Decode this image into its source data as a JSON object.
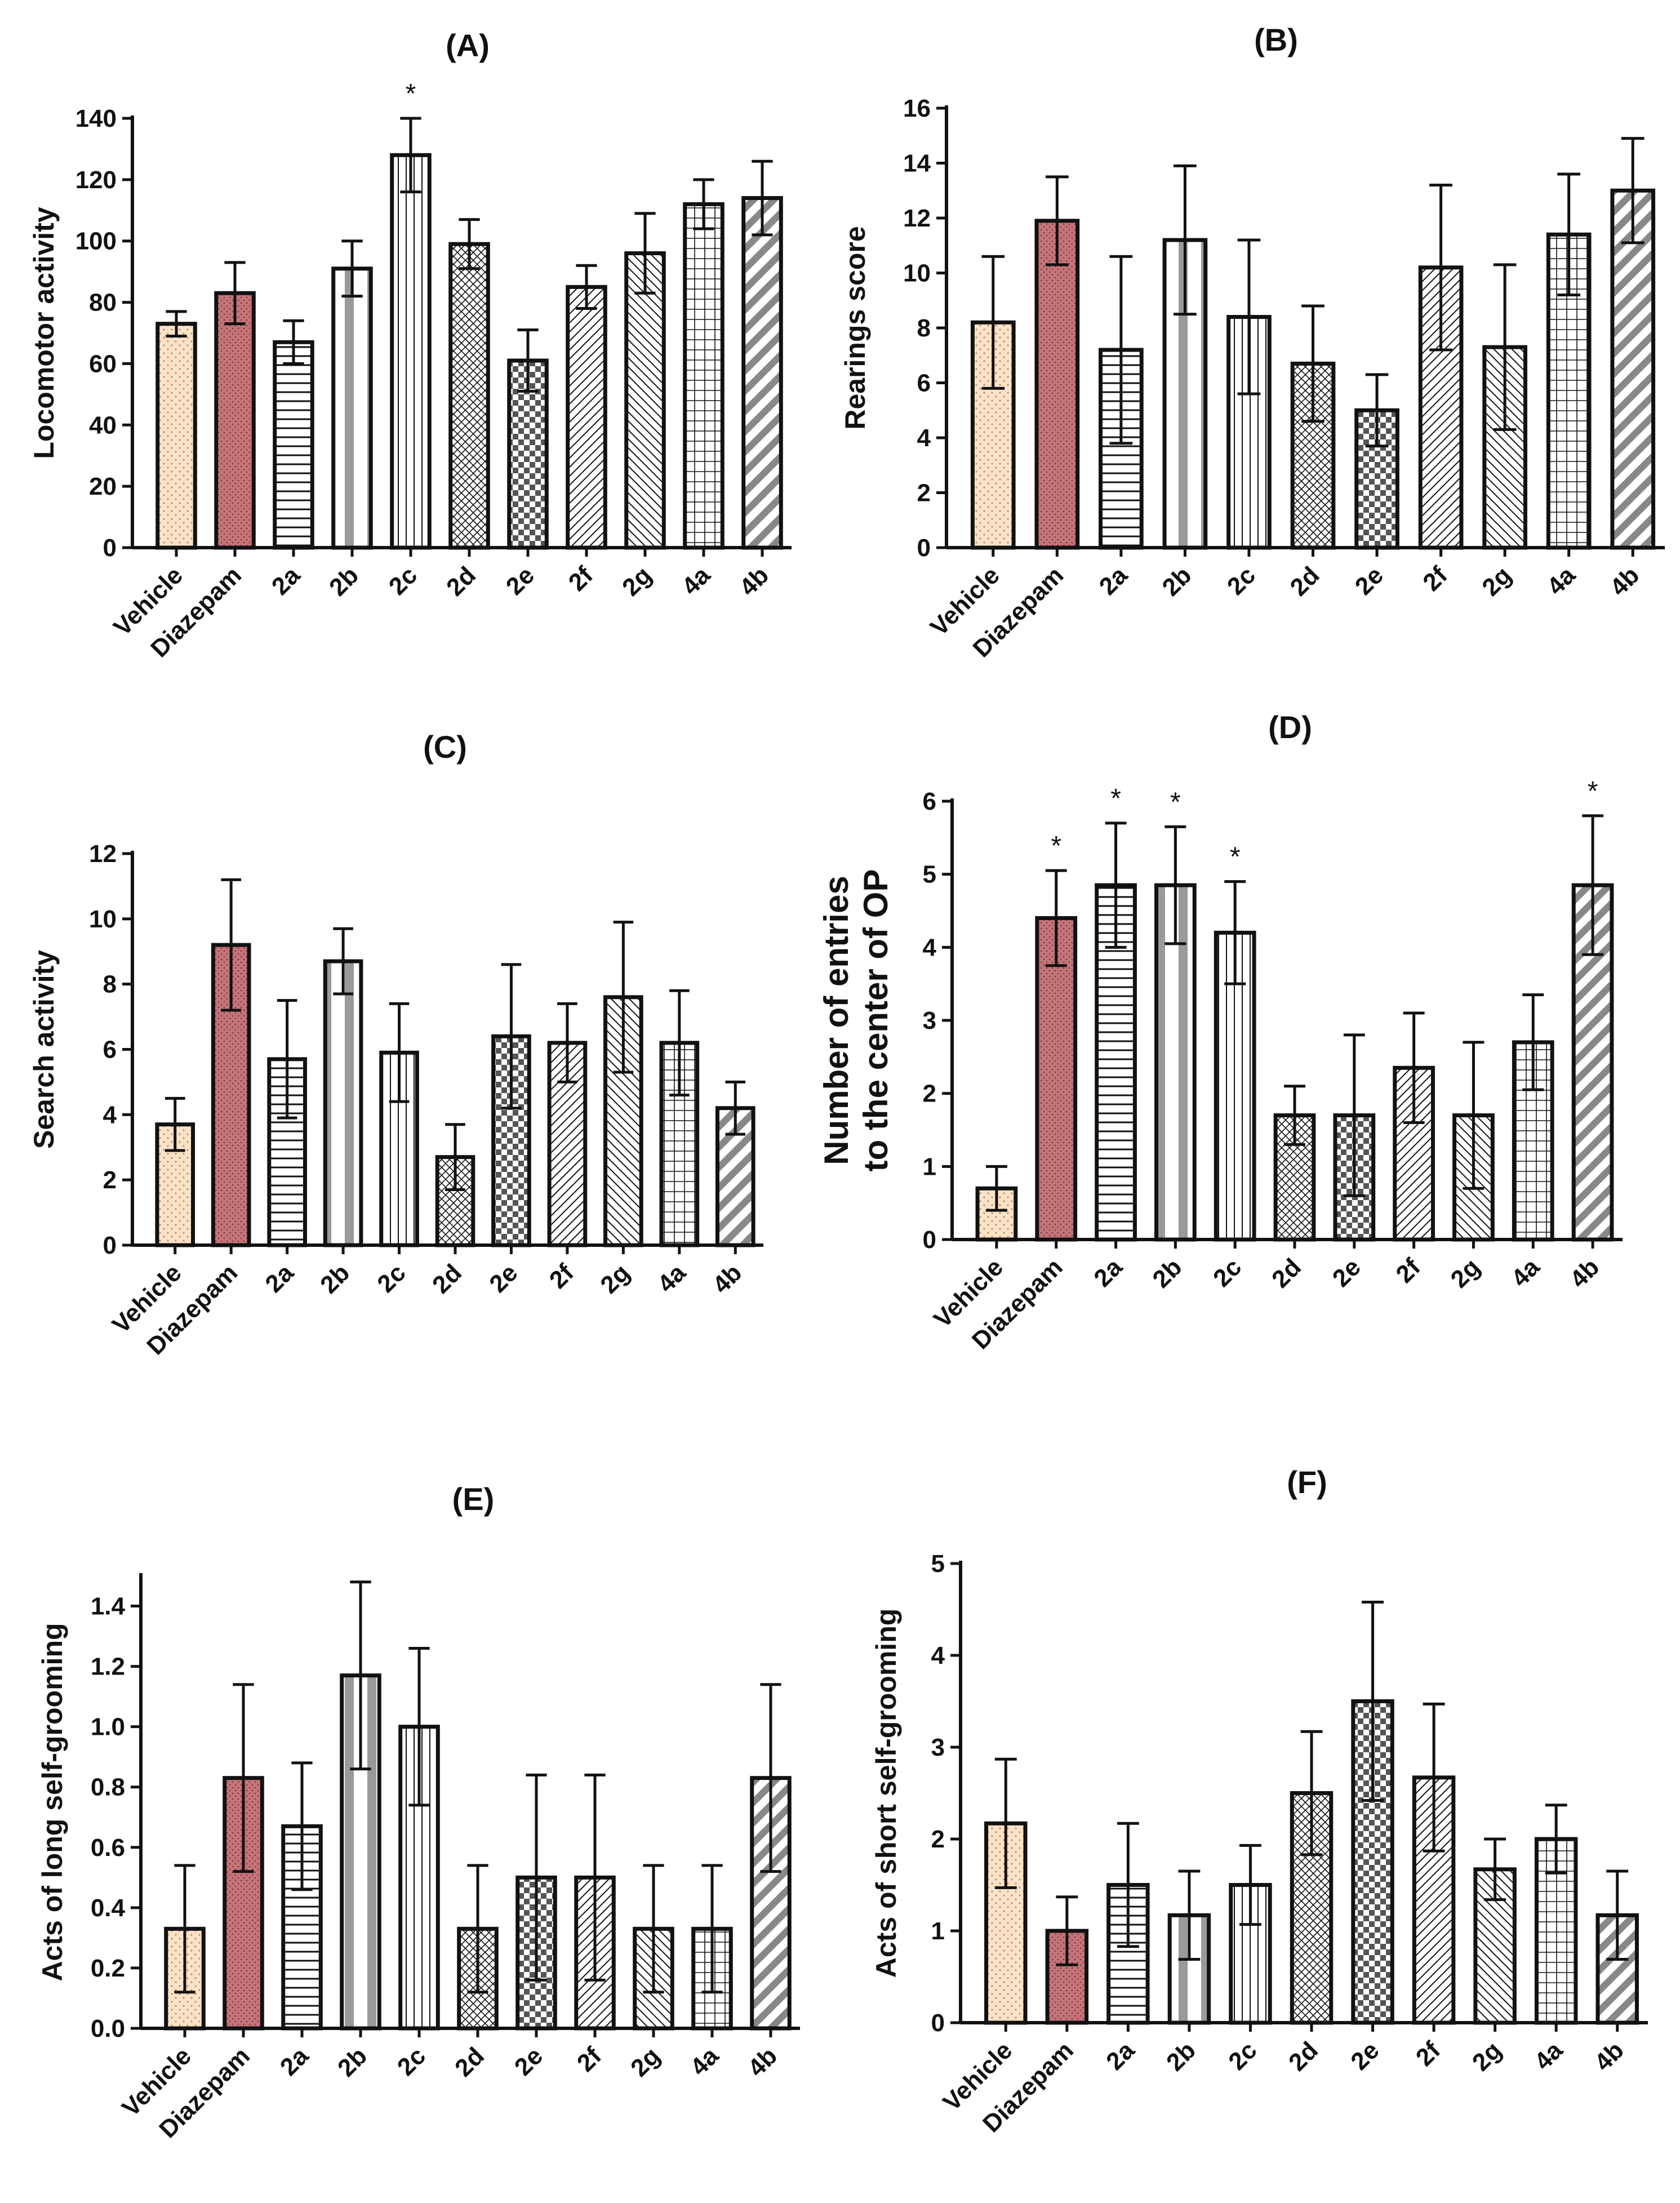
{
  "categories": [
    "Vehicle",
    "Diazepam",
    "2a",
    "2b",
    "2c",
    "2d",
    "2e",
    "2f",
    "2g",
    "4a",
    "4b"
  ],
  "colors": {
    "vehicle": "#fce3c8",
    "diazepam": "#c4757a",
    "stroke": "#111111",
    "pattern_gray": "#9a9a9a"
  },
  "chart_data": [
    {
      "type": "bar",
      "title": "(A)",
      "ylabel": "Locomotor activity",
      "ylim": [
        0,
        140
      ],
      "yticks": [
        0,
        20,
        40,
        60,
        80,
        100,
        120,
        140
      ],
      "values": [
        73,
        83,
        67,
        91,
        128,
        99,
        61,
        85,
        96,
        112,
        114
      ],
      "errors": [
        4,
        10,
        7,
        9,
        12,
        8,
        10,
        7,
        13,
        8,
        12
      ],
      "significant": [
        false,
        false,
        false,
        false,
        true,
        false,
        false,
        false,
        false,
        false,
        false
      ]
    },
    {
      "type": "bar",
      "title": "(B)",
      "ylabel": "Rearings score",
      "ylim": [
        0,
        16
      ],
      "yticks": [
        0,
        2,
        4,
        6,
        8,
        10,
        12,
        14,
        16
      ],
      "values": [
        8.2,
        11.9,
        7.2,
        11.2,
        8.4,
        6.7,
        5.0,
        10.2,
        7.3,
        11.4,
        13.0
      ],
      "errors": [
        2.4,
        1.6,
        3.4,
        2.7,
        2.8,
        2.1,
        1.3,
        3.0,
        3.0,
        2.2,
        1.9
      ],
      "significant": [
        false,
        false,
        false,
        false,
        false,
        false,
        false,
        false,
        false,
        false,
        false
      ]
    },
    {
      "type": "bar",
      "title": "(C)",
      "ylabel": "Search activity",
      "ylim": [
        0,
        12
      ],
      "yticks": [
        0,
        2,
        4,
        6,
        8,
        10,
        12
      ],
      "values": [
        3.7,
        9.2,
        5.7,
        8.7,
        5.9,
        2.7,
        6.4,
        6.2,
        7.6,
        6.2,
        4.2
      ],
      "errors": [
        0.8,
        2.0,
        1.8,
        1.0,
        1.5,
        1.0,
        2.2,
        1.2,
        2.3,
        1.6,
        0.8
      ],
      "significant": [
        false,
        false,
        false,
        false,
        false,
        false,
        false,
        false,
        false,
        false,
        false
      ]
    },
    {
      "type": "bar",
      "title": "(D)",
      "ylabel": "Number of entries to the center of OP",
      "ylabel_lines": [
        "Number of entries",
        "to the center of OP"
      ],
      "ylim": [
        0,
        6
      ],
      "yticks": [
        0,
        1,
        2,
        3,
        4,
        5,
        6
      ],
      "values": [
        0.7,
        4.4,
        4.85,
        4.85,
        4.2,
        1.7,
        1.7,
        2.35,
        1.7,
        2.7,
        4.85
      ],
      "errors": [
        0.3,
        0.65,
        0.85,
        0.8,
        0.7,
        0.4,
        1.1,
        0.75,
        1.0,
        0.65,
        0.95
      ],
      "significant": [
        false,
        true,
        true,
        true,
        true,
        false,
        false,
        false,
        false,
        false,
        true
      ]
    },
    {
      "type": "bar",
      "title": "(E)",
      "ylabel": "Acts of long self-grooming",
      "ylim": [
        0,
        1.5
      ],
      "yticks": [
        0.0,
        0.2,
        0.4,
        0.6,
        0.8,
        1.0,
        1.2,
        1.4
      ],
      "values": [
        0.33,
        0.83,
        0.67,
        1.17,
        1.0,
        0.33,
        0.5,
        0.5,
        0.33,
        0.33,
        0.83
      ],
      "errors": [
        0.21,
        0.31,
        0.21,
        0.31,
        0.26,
        0.21,
        0.34,
        0.34,
        0.21,
        0.21,
        0.31
      ],
      "significant": [
        false,
        false,
        false,
        false,
        false,
        false,
        false,
        false,
        false,
        false,
        false
      ]
    },
    {
      "type": "bar",
      "title": "(F)",
      "ylabel": "Acts of short self-grooming",
      "ylim": [
        0,
        5
      ],
      "yticks": [
        0,
        1,
        2,
        3,
        4,
        5
      ],
      "values": [
        2.17,
        1.0,
        1.5,
        1.17,
        1.5,
        2.5,
        3.5,
        2.67,
        1.67,
        2.0,
        1.17
      ],
      "errors": [
        0.7,
        0.37,
        0.67,
        0.48,
        0.43,
        0.67,
        1.08,
        0.8,
        0.33,
        0.37,
        0.48
      ],
      "significant": [
        false,
        false,
        false,
        false,
        false,
        false,
        false,
        false,
        false,
        false,
        false
      ]
    }
  ]
}
